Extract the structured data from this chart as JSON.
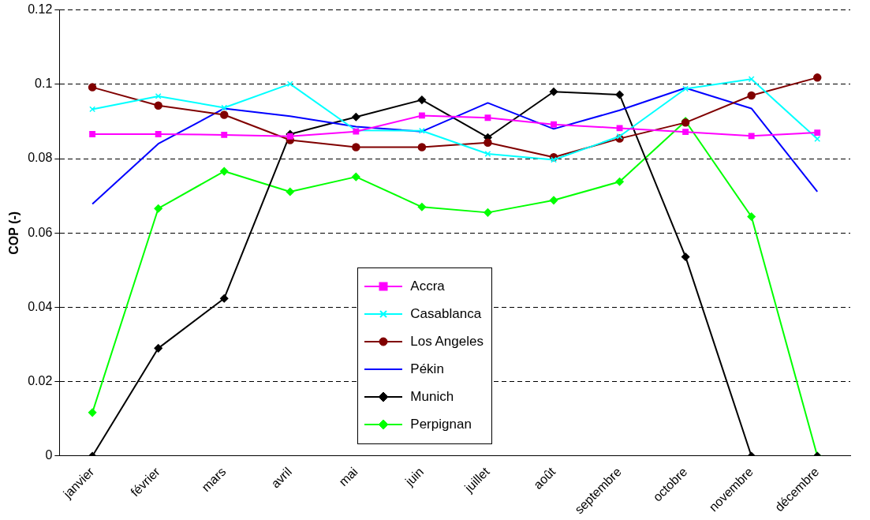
{
  "chart_data": {
    "type": "line",
    "ylabel": "COP (-)",
    "categories": [
      "janvier",
      "février",
      "mars",
      "avril",
      "mai",
      "juin",
      "juillet",
      "août",
      "septembre",
      "octobre",
      "novembre",
      "décembre"
    ],
    "ylim": [
      0,
      0.12
    ],
    "yticks": [
      0,
      0.02,
      0.04,
      0.06,
      0.08,
      0.1,
      0.12
    ],
    "grid": "y",
    "legend": "bottom",
    "series": [
      {
        "name": "Accra",
        "color": "#ff00ff",
        "marker": "square",
        "values": [
          0.0866,
          0.0866,
          0.0864,
          0.086,
          0.0873,
          0.0916,
          0.091,
          0.0892,
          0.0882,
          0.0872,
          0.0861,
          0.087
        ]
      },
      {
        "name": "Casablanca",
        "color": "#00ffff",
        "marker": "cross",
        "values": [
          0.0933,
          0.0968,
          0.0937,
          0.1001,
          0.0876,
          0.0875,
          0.0813,
          0.0797,
          0.086,
          0.0988,
          0.1014,
          0.0853
        ]
      },
      {
        "name": "Los Angeles",
        "color": "#800000",
        "marker": "circle",
        "values": [
          0.0992,
          0.0943,
          0.0918,
          0.085,
          0.0831,
          0.0831,
          0.0843,
          0.0804,
          0.0854,
          0.0897,
          0.097,
          0.1018
        ]
      },
      {
        "name": "Pékin",
        "color": "#0000ff",
        "marker": "none",
        "values": [
          0.0678,
          0.084,
          0.0935,
          0.0914,
          0.0886,
          0.0873,
          0.095,
          0.088,
          0.093,
          0.099,
          0.0935,
          0.0711
        ]
      },
      {
        "name": "Munich",
        "color": "#000000",
        "marker": "diamond",
        "values": [
          0,
          0.029,
          0.0424,
          0.0866,
          0.0912,
          0.0958,
          0.0857,
          0.098,
          0.0972,
          0.0536,
          0,
          0
        ]
      },
      {
        "name": "Perpignan",
        "color": "#00ff00",
        "marker": "diamond",
        "values": [
          0.0117,
          0.0666,
          0.0766,
          0.0711,
          0.0751,
          0.067,
          0.0655,
          0.0688,
          0.0738,
          0.0901,
          0.0644,
          0
        ]
      }
    ]
  }
}
